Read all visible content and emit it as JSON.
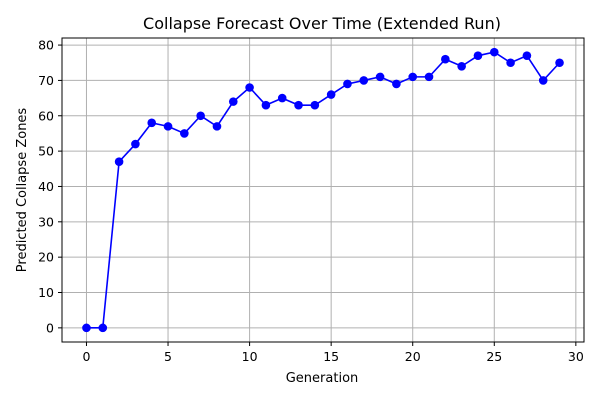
{
  "chart_data": {
    "type": "line",
    "title": "Collapse Forecast Over Time (Extended Run)",
    "xlabel": "Generation",
    "ylabel": "Predicted Collapse Zones",
    "xlim": [
      -1.5,
      30.5
    ],
    "ylim": [
      -4,
      82
    ],
    "xticks": [
      0,
      5,
      10,
      15,
      20,
      25,
      30
    ],
    "yticks": [
      0,
      10,
      20,
      30,
      40,
      50,
      60,
      70,
      80
    ],
    "grid": true,
    "line_color": "#0000ff",
    "marker": "circle",
    "x": [
      0,
      1,
      2,
      3,
      4,
      5,
      6,
      7,
      8,
      9,
      10,
      11,
      12,
      13,
      14,
      15,
      16,
      17,
      18,
      19,
      20,
      21,
      22,
      23,
      24,
      25,
      26,
      27,
      28,
      29
    ],
    "series": [
      {
        "values": [
          0,
          0,
          47,
          52,
          58,
          57,
          55,
          60,
          57,
          64,
          68,
          63,
          65,
          63,
          63,
          66,
          69,
          70,
          71,
          69,
          71,
          71,
          76,
          74,
          77,
          78,
          75,
          77,
          70,
          75
        ]
      }
    ]
  }
}
